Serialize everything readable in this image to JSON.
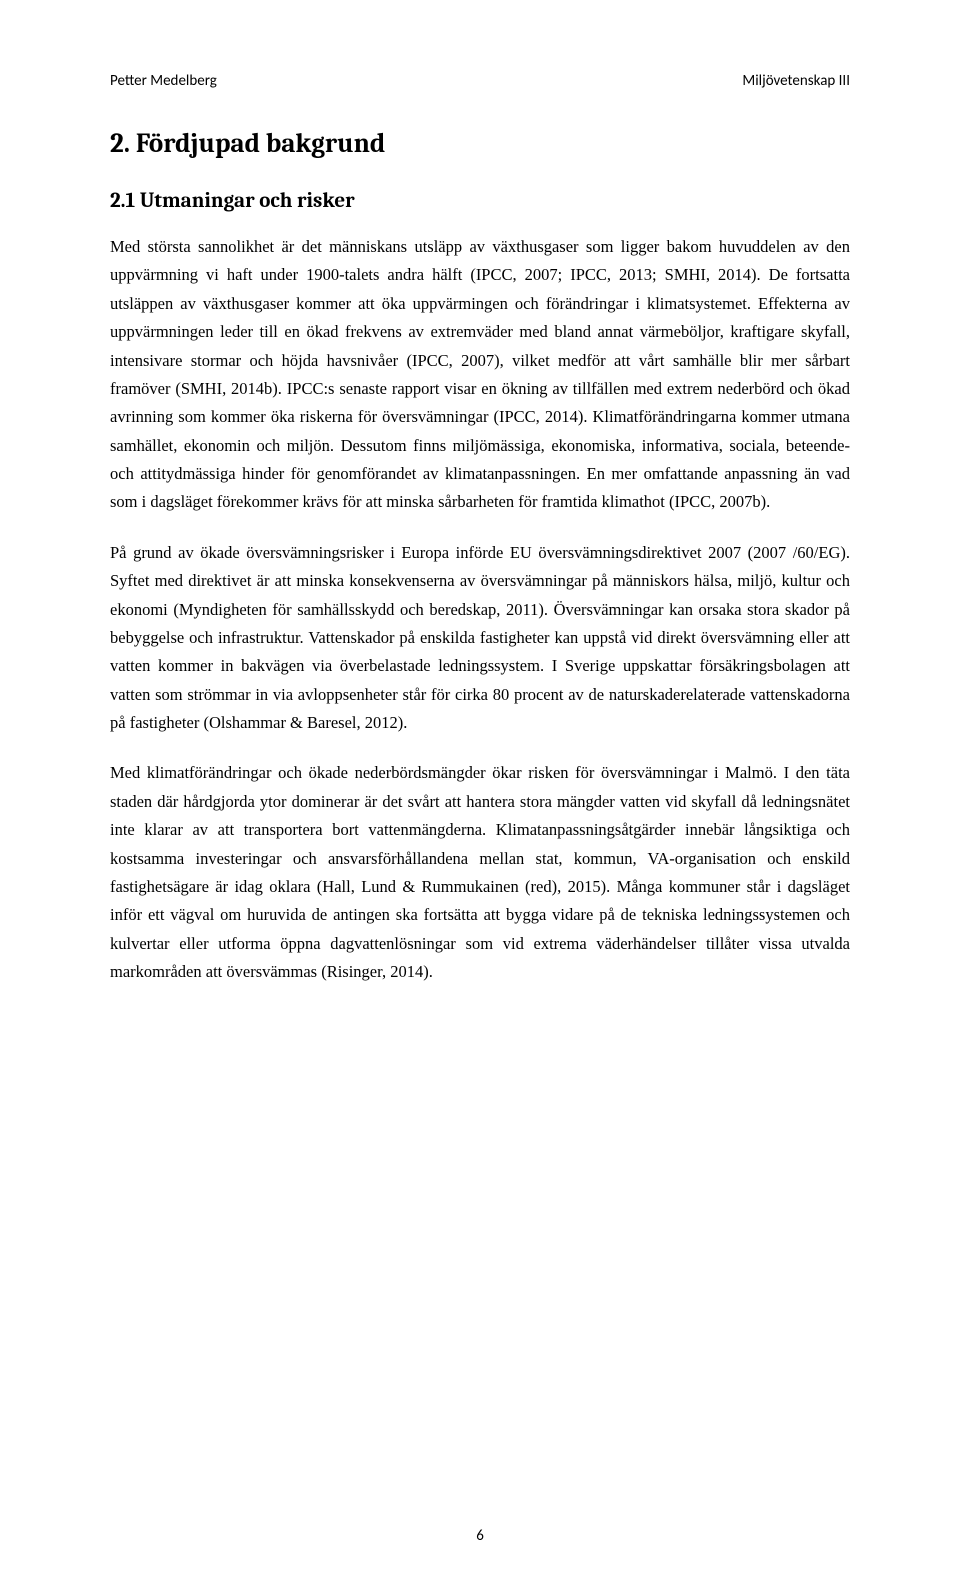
{
  "header": {
    "left": "Petter Medelberg",
    "right": "Miljövetenskap III"
  },
  "section": {
    "heading": "2. Fördjupad bakgrund"
  },
  "subsection": {
    "heading": "2.1 Utmaningar och risker"
  },
  "paragraphs": {
    "p1": "Med största sannolikhet är det människans utsläpp av växthusgaser som ligger bakom huvuddelen av den uppvärmning vi haft under 1900-talets andra hälft (IPCC, 2007; IPCC, 2013; SMHI, 2014). De fortsatta utsläppen av växthusgaser kommer att öka uppvärmingen och förändringar i klimatsystemet. Effekterna av uppvärmningen leder till en ökad frekvens av extremväder med bland annat värmeböljor, kraftigare skyfall, intensivare stormar och höjda havsnivåer (IPCC, 2007), vilket medför att vårt samhälle blir mer sårbart framöver (SMHI, 2014b). IPCC:s senaste rapport visar en ökning av tillfällen med extrem nederbörd och ökad avrinning som kommer öka riskerna för översvämningar (IPCC, 2014). Klimatförändringarna kommer utmana samhället, ekonomin och miljön. Dessutom finns miljömässiga, ekonomiska, informativa, sociala, beteende- och attitydmässiga hinder för genomförandet av klimatanpassningen. En mer omfattande anpassning än vad som i dagsläget förekommer krävs för att minska sårbarheten för framtida klimathot (IPCC, 2007b).",
    "p2": "På grund av ökade översvämningsrisker i Europa införde EU översvämningsdirektivet 2007 (2007 /60/EG). Syftet med direktivet är att minska konsekvenserna av översvämningar på människors hälsa, miljö, kultur och ekonomi (Myndigheten för samhällsskydd och beredskap, 2011). Översvämningar kan orsaka stora skador på bebyggelse och infrastruktur. Vattenskador på enskilda fastigheter kan uppstå vid direkt översvämning eller att vatten kommer in bakvägen via överbelastade ledningssystem. I Sverige uppskattar försäkringsbolagen att vatten som strömmar in via avloppsenheter står för cirka 80 procent av de naturskaderelaterade vattenskadorna på fastigheter (Olshammar & Baresel, 2012).",
    "p3": "Med klimatförändringar och ökade nederbördsmängder ökar risken för översvämningar i Malmö. I den täta staden där hårdgjorda ytor dominerar är det svårt att hantera stora mängder vatten vid skyfall då ledningsnätet inte klarar av att transportera bort vattenmängderna. Klimatanpassningsåtgärder innebär långsiktiga och kostsamma investeringar och ansvarsförhållandena mellan stat, kommun, VA-organisation och enskild fastighetsägare är idag oklara (Hall, Lund & Rummukainen (red), 2015). Många kommuner står i dagsläget inför ett vägval om huruvida de antingen ska fortsätta att bygga vidare på de tekniska ledningssystemen och kulvertar eller utforma öppna dagvattenlösningar som vid extrema väderhändelser tillåter vissa utvalda markområden att översvämmas (Risinger, 2014)."
  },
  "pageNumber": "6",
  "styles": {
    "background_color": "#ffffff",
    "text_color": "#000000",
    "heading_font": "Cambria",
    "body_font": "Times New Roman",
    "header_font": "Calibri",
    "section_heading_fontsize": 27,
    "subsection_heading_fontsize": 21,
    "body_fontsize": 16.5,
    "header_fontsize": 15,
    "line_height": 1.72
  }
}
